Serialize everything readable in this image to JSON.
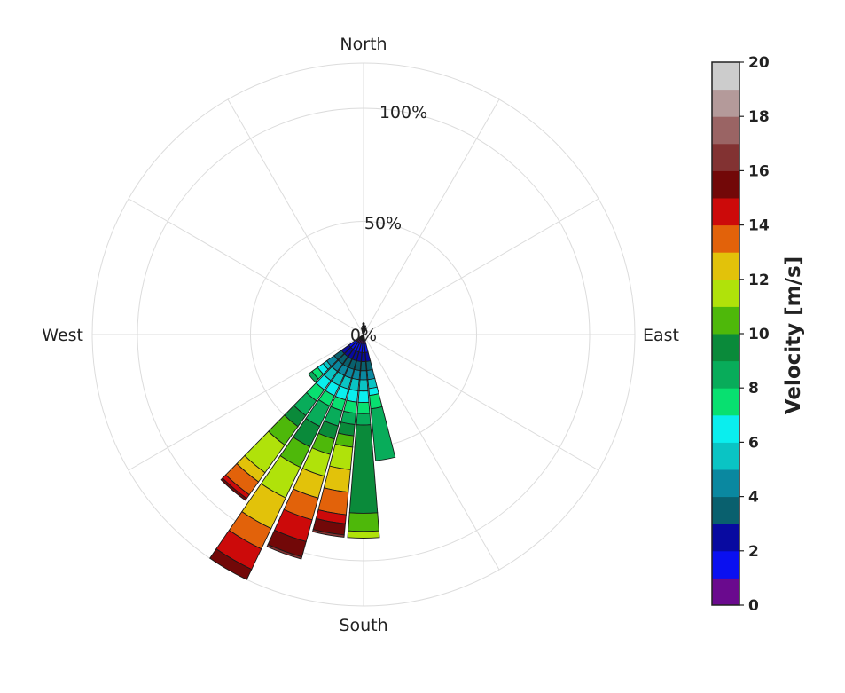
{
  "chart_data": {
    "type": "wind-rose",
    "direction_labels": {
      "north": "North",
      "east": "East",
      "south": "South",
      "west": "West"
    },
    "radial_ticks": [
      {
        "value": 0,
        "label": "0%"
      },
      {
        "value": 50,
        "label": "50%"
      },
      {
        "value": 100,
        "label": "100%"
      }
    ],
    "rmax": 120,
    "grid": true,
    "spoke_angles_deg": [
      0,
      30,
      60,
      90,
      120,
      150,
      180,
      210,
      240,
      270,
      300,
      330
    ],
    "colorbar": {
      "title": "Velocity [m/s]",
      "ticks": [
        "0",
        "2",
        "4",
        "6",
        "8",
        "10",
        "12",
        "14",
        "16",
        "18",
        "20"
      ],
      "vmin": 0,
      "vmax": 20,
      "bin_width": 1,
      "colors": [
        "#6a0a8e",
        "#0a10f0",
        "#080aa0",
        "#09606e",
        "#0a88a0",
        "#0ac4c4",
        "#0aeeee",
        "#08e070",
        "#08ac5a",
        "#0a8a3a",
        "#4eb80a",
        "#b0e20a",
        "#e2c20a",
        "#e2620a",
        "#cc0a0a",
        "#720808",
        "#823232",
        "#9a6464",
        "#b49a9a",
        "#cccccc"
      ]
    },
    "sectors": [
      {
        "direction_deg": 0,
        "width_deg": 9,
        "cumulative_percent": [
          3,
          5
        ]
      },
      {
        "direction_deg": 10,
        "width_deg": 9,
        "cumulative_percent": [
          2,
          4
        ]
      },
      {
        "direction_deg": 20,
        "width_deg": 9,
        "cumulative_percent": [
          2,
          3
        ]
      },
      {
        "direction_deg": 170,
        "width_deg": 9,
        "cumulative_percent": [
          4,
          8,
          12,
          16,
          20,
          24,
          27,
          33,
          56
        ]
      },
      {
        "direction_deg": 180,
        "width_deg": 9,
        "cumulative_percent": [
          4,
          8,
          12,
          16,
          20,
          25,
          30,
          35,
          40,
          79,
          87,
          90
        ]
      },
      {
        "direction_deg": 190,
        "width_deg": 9,
        "cumulative_percent": [
          4,
          8,
          12,
          16,
          20,
          25,
          30,
          35,
          40,
          45,
          50,
          60,
          70,
          80,
          84,
          89,
          90
        ]
      },
      {
        "direction_deg": 200,
        "width_deg": 9,
        "cumulative_percent": [
          4,
          8,
          12,
          16,
          20,
          25,
          30,
          35,
          42,
          48,
          55,
          65,
          75,
          85,
          95,
          102,
          103
        ]
      },
      {
        "direction_deg": 210,
        "width_deg": 9,
        "cumulative_percent": [
          4,
          8,
          12,
          16,
          20,
          25,
          30,
          35,
          45,
          55,
          65,
          80,
          95,
          105,
          115,
          120
        ]
      },
      {
        "direction_deg": 220,
        "width_deg": 9,
        "cumulative_percent": [
          4,
          8,
          12,
          16,
          20,
          25,
          30,
          36,
          44,
          50,
          60,
          75,
          80,
          87,
          89,
          90
        ]
      },
      {
        "direction_deg": 230,
        "width_deg": 9,
        "cumulative_percent": [
          4,
          8,
          12,
          16,
          20,
          22,
          25,
          28,
          30
        ]
      }
    ]
  }
}
